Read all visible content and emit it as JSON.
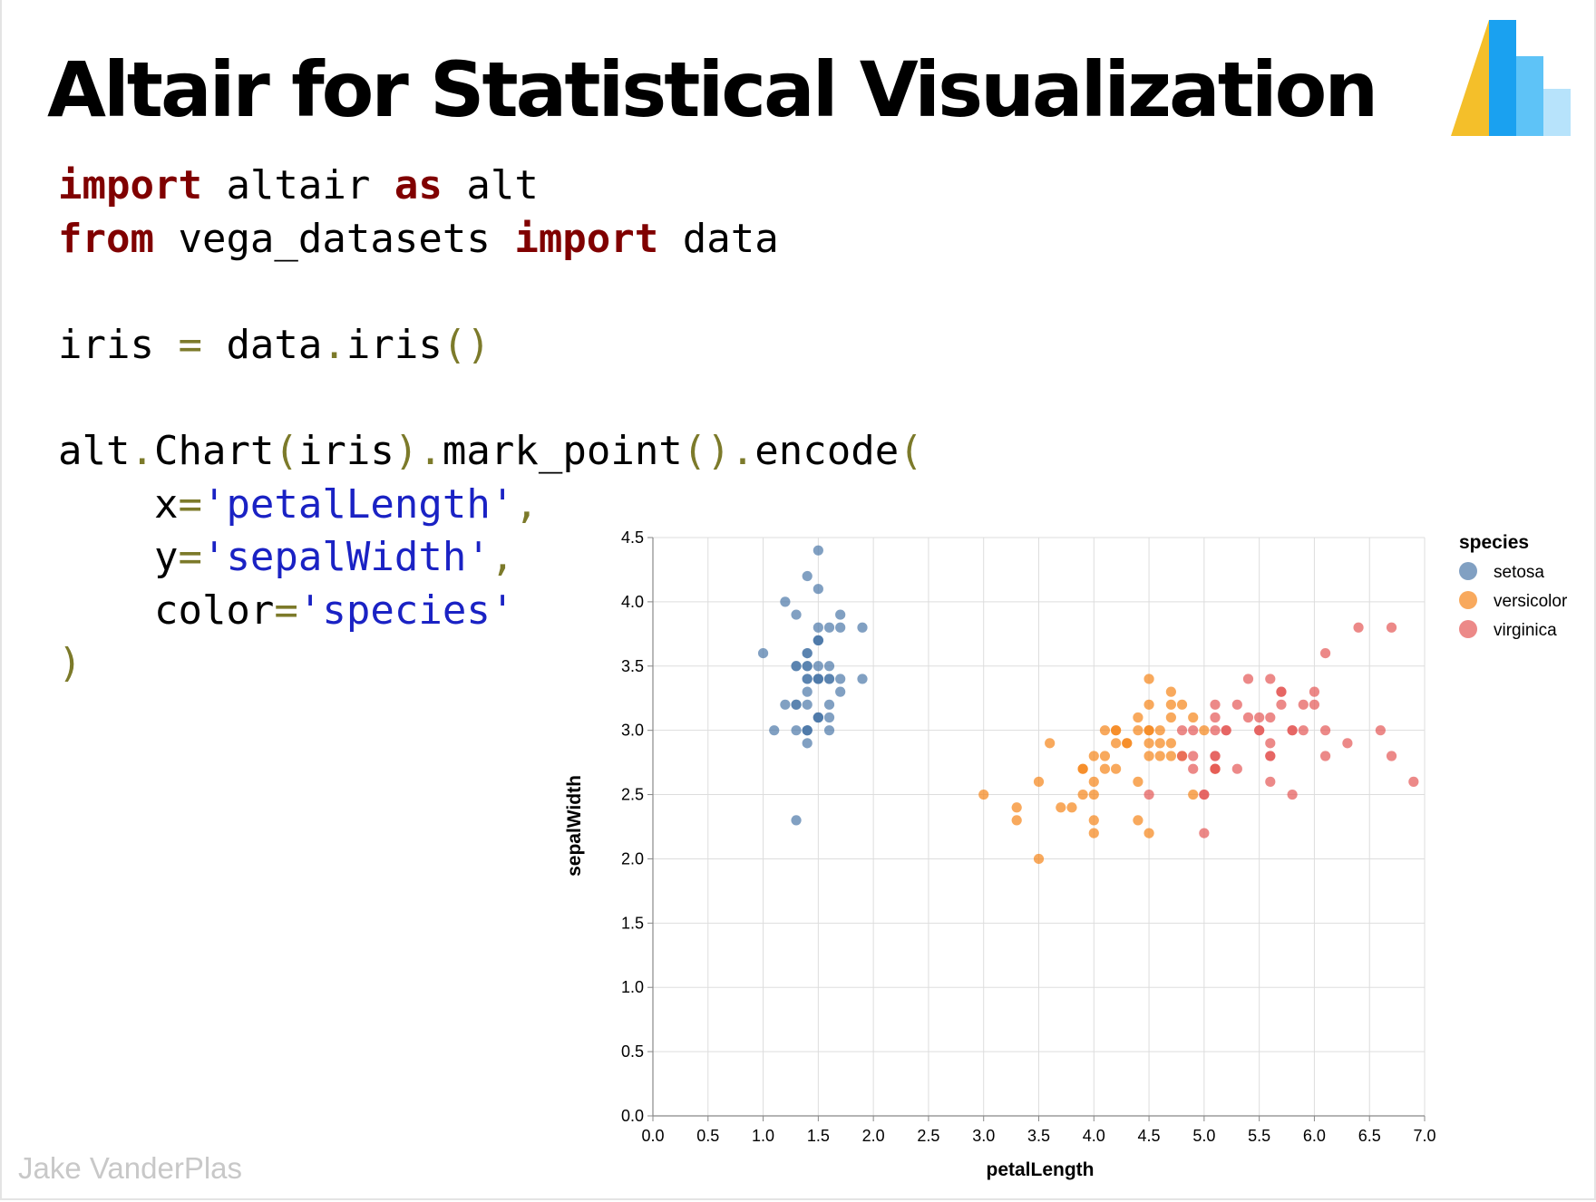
{
  "slide": {
    "title": "Altair for Statistical Visualization",
    "author": "Jake VanderPlas",
    "logo_icon": "altair-logo-icon"
  },
  "code_lines": [
    [
      {
        "t": "kw",
        "v": "import"
      },
      {
        "t": "txt",
        "v": " altair "
      },
      {
        "t": "kw",
        "v": "as"
      },
      {
        "t": "txt",
        "v": " alt"
      }
    ],
    [
      {
        "t": "kw",
        "v": "from"
      },
      {
        "t": "txt",
        "v": " vega_datasets "
      },
      {
        "t": "kw",
        "v": "import"
      },
      {
        "t": "txt",
        "v": " data"
      }
    ],
    [],
    [
      {
        "t": "txt",
        "v": "iris "
      },
      {
        "t": "op",
        "v": "="
      },
      {
        "t": "txt",
        "v": " data"
      },
      {
        "t": "op",
        "v": "."
      },
      {
        "t": "txt",
        "v": "iris"
      },
      {
        "t": "op",
        "v": "()"
      }
    ],
    [],
    [
      {
        "t": "txt",
        "v": "alt"
      },
      {
        "t": "op",
        "v": "."
      },
      {
        "t": "txt",
        "v": "Chart"
      },
      {
        "t": "op",
        "v": "("
      },
      {
        "t": "txt",
        "v": "iris"
      },
      {
        "t": "op",
        "v": ")."
      },
      {
        "t": "txt",
        "v": "mark_point"
      },
      {
        "t": "op",
        "v": "()."
      },
      {
        "t": "txt",
        "v": "encode"
      },
      {
        "t": "op",
        "v": "("
      }
    ],
    [
      {
        "t": "txt",
        "v": "    x"
      },
      {
        "t": "op",
        "v": "="
      },
      {
        "t": "str",
        "v": "'petalLength'"
      },
      {
        "t": "op",
        "v": ","
      }
    ],
    [
      {
        "t": "txt",
        "v": "    y"
      },
      {
        "t": "op",
        "v": "="
      },
      {
        "t": "str",
        "v": "'sepalWidth'"
      },
      {
        "t": "op",
        "v": ","
      }
    ],
    [
      {
        "t": "txt",
        "v": "    color"
      },
      {
        "t": "op",
        "v": "="
      },
      {
        "t": "str",
        "v": "'species'"
      }
    ],
    [
      {
        "t": "op",
        "v": ")"
      }
    ]
  ],
  "chart_data": {
    "type": "scatter",
    "xlabel": "petalLength",
    "ylabel": "sepalWidth",
    "xlim": [
      0,
      7
    ],
    "ylim": [
      0,
      4.5
    ],
    "xticks": [
      "0.0",
      "0.5",
      "1.0",
      "1.5",
      "2.0",
      "2.5",
      "3.0",
      "3.5",
      "4.0",
      "4.5",
      "5.0",
      "5.5",
      "6.0",
      "6.5",
      "7.0"
    ],
    "yticks": [
      "0.0",
      "0.5",
      "1.0",
      "1.5",
      "2.0",
      "2.5",
      "3.0",
      "3.5",
      "4.0",
      "4.5"
    ],
    "grid": true,
    "legend": {
      "title": "species",
      "placement": "right"
    },
    "series": [
      {
        "name": "setosa",
        "color": "#4c78a8",
        "points": [
          [
            1.4,
            3.5
          ],
          [
            1.4,
            3.0
          ],
          [
            1.3,
            3.2
          ],
          [
            1.5,
            3.1
          ],
          [
            1.4,
            3.6
          ],
          [
            1.7,
            3.9
          ],
          [
            1.4,
            3.4
          ],
          [
            1.5,
            3.4
          ],
          [
            1.4,
            2.9
          ],
          [
            1.5,
            3.1
          ],
          [
            1.5,
            3.7
          ],
          [
            1.6,
            3.4
          ],
          [
            1.4,
            3.0
          ],
          [
            1.1,
            3.0
          ],
          [
            1.2,
            4.0
          ],
          [
            1.5,
            4.4
          ],
          [
            1.3,
            3.9
          ],
          [
            1.4,
            3.5
          ],
          [
            1.7,
            3.8
          ],
          [
            1.5,
            3.8
          ],
          [
            1.7,
            3.4
          ],
          [
            1.5,
            3.7
          ],
          [
            1.0,
            3.6
          ],
          [
            1.7,
            3.3
          ],
          [
            1.9,
            3.4
          ],
          [
            1.6,
            3.0
          ],
          [
            1.6,
            3.4
          ],
          [
            1.5,
            3.5
          ],
          [
            1.4,
            3.4
          ],
          [
            1.6,
            3.2
          ],
          [
            1.6,
            3.1
          ],
          [
            1.5,
            3.4
          ],
          [
            1.5,
            4.1
          ],
          [
            1.4,
            4.2
          ],
          [
            1.5,
            3.1
          ],
          [
            1.2,
            3.2
          ],
          [
            1.3,
            3.5
          ],
          [
            1.4,
            3.6
          ],
          [
            1.3,
            3.0
          ],
          [
            1.5,
            3.4
          ],
          [
            1.3,
            3.5
          ],
          [
            1.3,
            2.3
          ],
          [
            1.3,
            3.2
          ],
          [
            1.6,
            3.5
          ],
          [
            1.9,
            3.8
          ],
          [
            1.4,
            3.0
          ],
          [
            1.6,
            3.8
          ],
          [
            1.4,
            3.2
          ],
          [
            1.5,
            3.7
          ],
          [
            1.4,
            3.3
          ]
        ]
      },
      {
        "name": "versicolor",
        "color": "#f58518",
        "points": [
          [
            4.7,
            3.2
          ],
          [
            4.5,
            3.2
          ],
          [
            4.9,
            3.1
          ],
          [
            4.0,
            2.3
          ],
          [
            4.6,
            2.8
          ],
          [
            4.5,
            2.8
          ],
          [
            4.7,
            3.3
          ],
          [
            3.3,
            2.4
          ],
          [
            4.6,
            2.9
          ],
          [
            3.9,
            2.7
          ],
          [
            3.5,
            2.0
          ],
          [
            4.2,
            3.0
          ],
          [
            4.0,
            2.2
          ],
          [
            4.7,
            2.9
          ],
          [
            3.6,
            2.9
          ],
          [
            4.4,
            3.1
          ],
          [
            4.5,
            3.0
          ],
          [
            4.1,
            2.7
          ],
          [
            4.5,
            2.2
          ],
          [
            3.9,
            2.5
          ],
          [
            4.8,
            3.2
          ],
          [
            4.0,
            2.8
          ],
          [
            4.9,
            2.5
          ],
          [
            4.7,
            2.8
          ],
          [
            4.3,
            2.9
          ],
          [
            4.4,
            3.0
          ],
          [
            4.8,
            2.8
          ],
          [
            5.0,
            3.0
          ],
          [
            4.5,
            2.9
          ],
          [
            3.5,
            2.6
          ],
          [
            3.8,
            2.4
          ],
          [
            3.7,
            2.4
          ],
          [
            3.9,
            2.7
          ],
          [
            5.1,
            2.7
          ],
          [
            4.5,
            3.0
          ],
          [
            4.5,
            3.4
          ],
          [
            4.7,
            3.1
          ],
          [
            4.4,
            2.3
          ],
          [
            4.1,
            3.0
          ],
          [
            4.0,
            2.5
          ],
          [
            4.4,
            2.6
          ],
          [
            4.6,
            3.0
          ],
          [
            4.0,
            2.6
          ],
          [
            3.3,
            2.3
          ],
          [
            4.2,
            2.7
          ],
          [
            4.2,
            3.0
          ],
          [
            4.2,
            2.9
          ],
          [
            4.3,
            2.9
          ],
          [
            3.0,
            2.5
          ],
          [
            4.1,
            2.8
          ]
        ]
      },
      {
        "name": "virginica",
        "color": "#e45756",
        "points": [
          [
            6.0,
            3.3
          ],
          [
            5.1,
            2.7
          ],
          [
            5.9,
            3.0
          ],
          [
            5.6,
            2.9
          ],
          [
            5.8,
            3.0
          ],
          [
            6.6,
            3.0
          ],
          [
            4.5,
            2.5
          ],
          [
            6.3,
            2.9
          ],
          [
            5.8,
            2.5
          ],
          [
            6.1,
            3.6
          ],
          [
            5.1,
            3.2
          ],
          [
            5.3,
            2.7
          ],
          [
            5.5,
            3.0
          ],
          [
            5.0,
            2.5
          ],
          [
            5.1,
            2.8
          ],
          [
            5.3,
            3.2
          ],
          [
            5.5,
            3.0
          ],
          [
            6.7,
            3.8
          ],
          [
            6.9,
            2.6
          ],
          [
            5.0,
            2.2
          ],
          [
            5.7,
            3.2
          ],
          [
            4.9,
            2.8
          ],
          [
            6.7,
            2.8
          ],
          [
            4.9,
            2.7
          ],
          [
            5.7,
            3.3
          ],
          [
            6.0,
            3.2
          ],
          [
            4.8,
            2.8
          ],
          [
            4.9,
            3.0
          ],
          [
            5.6,
            2.8
          ],
          [
            5.8,
            3.0
          ],
          [
            6.1,
            2.8
          ],
          [
            6.4,
            3.8
          ],
          [
            5.6,
            2.8
          ],
          [
            5.1,
            2.8
          ],
          [
            5.6,
            2.6
          ],
          [
            6.1,
            3.0
          ],
          [
            5.6,
            3.4
          ],
          [
            5.5,
            3.1
          ],
          [
            4.8,
            3.0
          ],
          [
            5.4,
            3.1
          ],
          [
            5.6,
            3.1
          ],
          [
            5.1,
            3.1
          ],
          [
            5.1,
            2.7
          ],
          [
            5.9,
            3.2
          ],
          [
            5.7,
            3.3
          ],
          [
            5.2,
            3.0
          ],
          [
            5.0,
            2.5
          ],
          [
            5.2,
            3.0
          ],
          [
            5.4,
            3.4
          ],
          [
            5.1,
            3.0
          ]
        ]
      }
    ]
  }
}
